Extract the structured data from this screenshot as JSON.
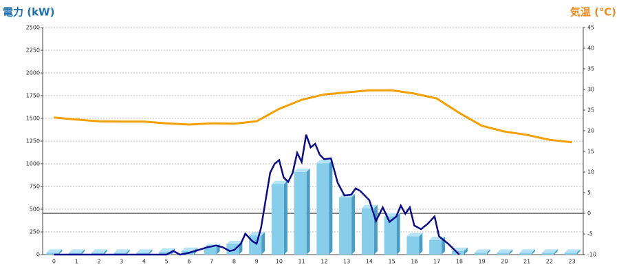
{
  "chart_data": {
    "type": "bar-line",
    "title_left": "電力 (kW)",
    "title_right": "気温 (℃)",
    "categories": [
      "0",
      "1",
      "2",
      "3",
      "4",
      "5",
      "6",
      "7",
      "8",
      "9",
      "10",
      "11",
      "12",
      "13",
      "14",
      "15",
      "16",
      "17",
      "18",
      "19",
      "20",
      "21",
      "22",
      "23"
    ],
    "series": [
      {
        "type": "bar",
        "color": "#87ceeb",
        "values": [
          20,
          20,
          20,
          20,
          20,
          30,
          40,
          80,
          115,
          210,
          775,
          910,
          1005,
          630,
          510,
          420,
          200,
          160,
          40,
          20,
          20,
          20,
          20,
          20
        ]
      },
      {
        "type": "line",
        "axis": "y2",
        "color": "#f5a000",
        "values": [
          23.2,
          22.7,
          22.3,
          22.2,
          22.2,
          21.8,
          21.5,
          21.8,
          21.7,
          22.3,
          25.3,
          27.5,
          28.8,
          29.3,
          29.8,
          29.8,
          29.0,
          27.8,
          24.3,
          21.2,
          19.8,
          19.0,
          17.8,
          17.2
        ]
      },
      {
        "type": "xy-line",
        "color": "#0a0a8c",
        "x": [
          0,
          1,
          2,
          3,
          4,
          5,
          5.3,
          5.6,
          6,
          6.4,
          6.8,
          7.2,
          7.5,
          7.8,
          8,
          8.3,
          8.5,
          8.8,
          9,
          9.2,
          9.4,
          9.6,
          9.8,
          10,
          10.2,
          10.4,
          10.6,
          10.8,
          11,
          11.2,
          11.4,
          11.6,
          11.8,
          12,
          12.3,
          12.6,
          12.9,
          13.2,
          13.4,
          13.6,
          14,
          14.3,
          14.6,
          14.9,
          15.2,
          15.4,
          15.6,
          15.8,
          16,
          16.3,
          16.6,
          16.9,
          17.1,
          17.5,
          18
        ],
        "values": [
          0,
          0,
          0,
          0,
          0,
          0,
          40,
          0,
          20,
          50,
          80,
          100,
          80,
          40,
          50,
          120,
          230,
          150,
          120,
          300,
          600,
          900,
          1000,
          1040,
          850,
          800,
          900,
          1120,
          1020,
          1320,
          1180,
          1220,
          1100,
          1050,
          1060,
          790,
          650,
          660,
          730,
          700,
          600,
          370,
          520,
          360,
          420,
          540,
          450,
          520,
          320,
          280,
          340,
          420,
          200,
          120,
          0
        ]
      }
    ],
    "ylim": [
      0,
      2500
    ],
    "yticks": [
      0,
      250,
      500,
      750,
      1000,
      1250,
      1500,
      1750,
      2000,
      2250,
      2500
    ],
    "y2lim": [
      -10,
      45
    ],
    "y2ticks": [
      -10,
      -5,
      0,
      5,
      10,
      15,
      20,
      25,
      30,
      35,
      40,
      45
    ],
    "grid": true
  }
}
